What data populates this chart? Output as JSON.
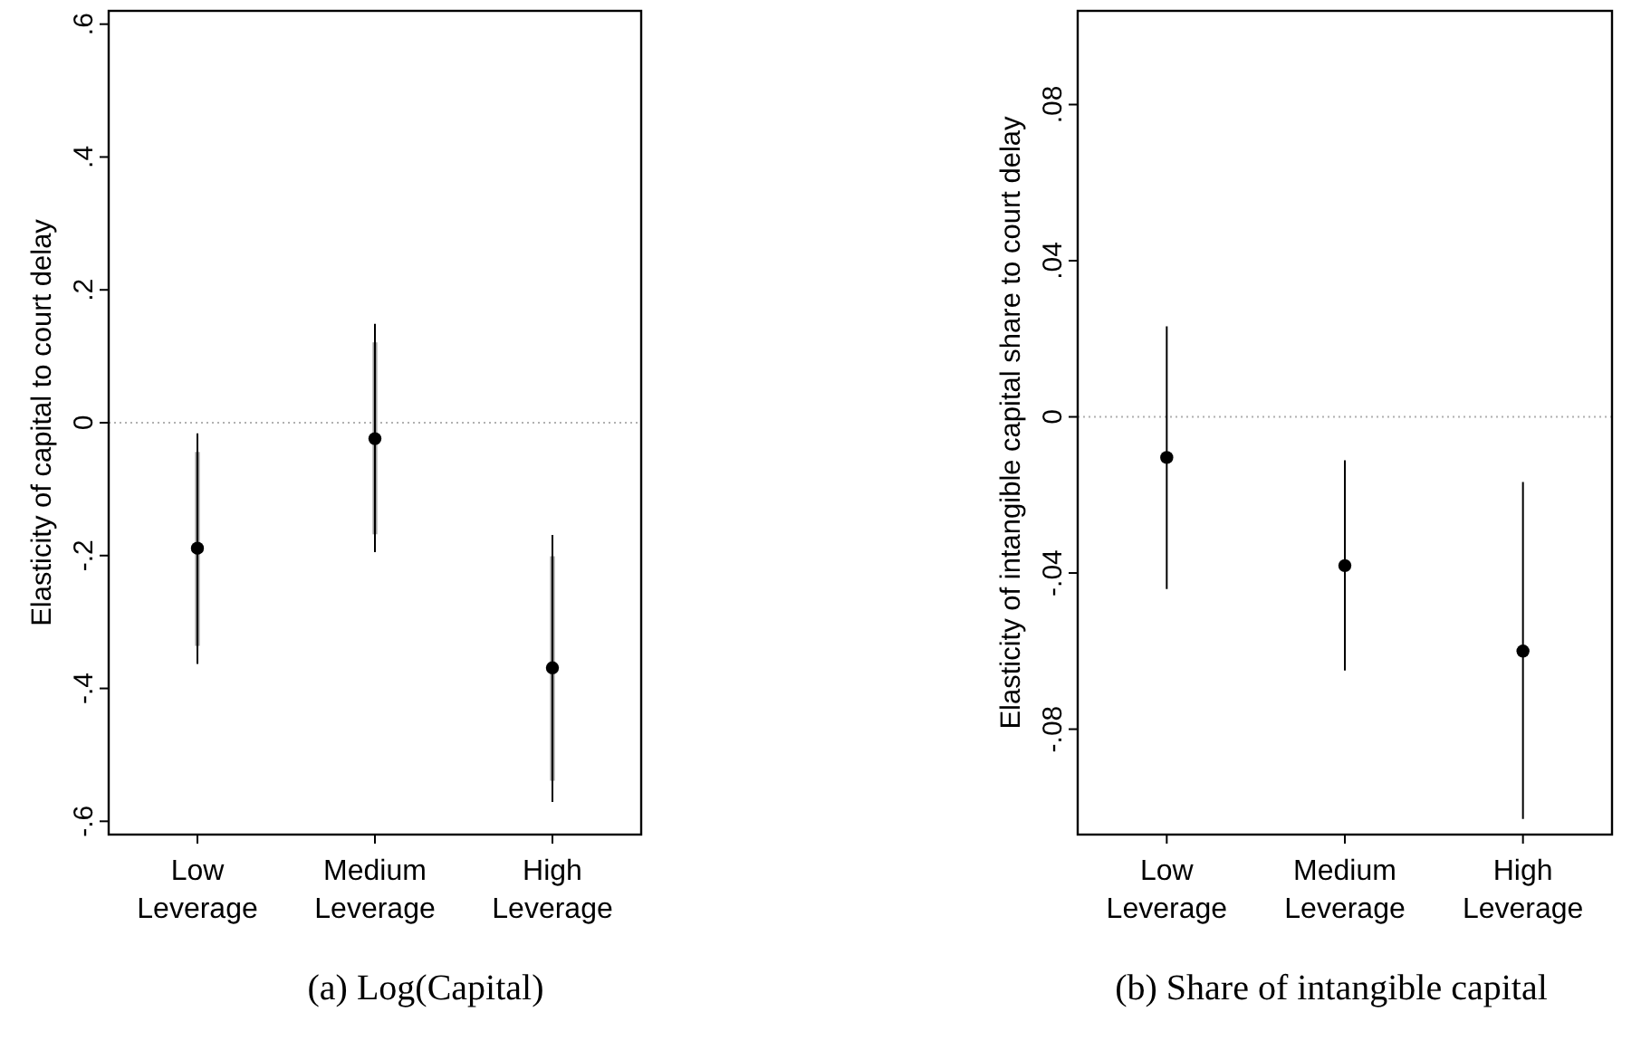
{
  "chart_data": [
    {
      "type": "scatter",
      "title": "(a) Log(Capital)",
      "ylabel": "Elasticity of capital to court delay",
      "categories": [
        "Low Leverage",
        "Medium Leverage",
        "High Leverage"
      ],
      "series": [
        {
          "color": "#000000",
          "values": [
            -0.189,
            -0.024,
            -0.369
          ],
          "errors": [
            [
              -0.363,
              -0.016
            ],
            [
              -0.195,
              0.149
            ],
            [
              -0.571,
              -0.169
            ]
          ],
          "marker": "circle"
        },
        {
          "type": "bar",
          "color": "#a0a0a0",
          "base": [
            -0.336,
            -0.168,
            -0.539
          ],
          "values": [
            0.292,
            0.289,
            0.338
          ]
        }
      ],
      "ylim": [
        -0.62,
        0.62
      ],
      "yticks": [
        {
          "value": -0.6,
          "label": "-.6"
        },
        {
          "value": -0.4,
          "label": "-.4"
        },
        {
          "value": -0.2,
          "label": "-.2"
        },
        0,
        {
          "value": 0.2,
          "label": ".2"
        },
        {
          "value": 0.4,
          "label": ".4"
        },
        {
          "value": 0.6,
          "label": ".6"
        }
      ],
      "ref_lines": [
        {
          "axis": "y",
          "value": 0,
          "color": "#b0b0b0",
          "line_style": "dotted"
        }
      ],
      "grid": false
    },
    {
      "type": "scatter",
      "title": "(b) Share of intangible capital",
      "ylabel": "Elasticity of intangible capital share to court delay",
      "categories": [
        "Low Leverage",
        "Medium Leverage",
        "High Leverage"
      ],
      "series": [
        {
          "color": "#000000",
          "values": [
            -0.0104,
            -0.0381,
            -0.06
          ],
          "errors": [
            [
              -0.0441,
              0.0232
            ],
            [
              -0.065,
              -0.0111
            ],
            [
              -0.103,
              -0.0167
            ]
          ],
          "marker": "circle"
        }
      ],
      "ylim": [
        -0.107,
        0.104
      ],
      "yticks": [
        {
          "value": -0.08,
          "label": "-.08"
        },
        {
          "value": -0.04,
          "label": "-.04"
        },
        0,
        {
          "value": 0.04,
          "label": ".04"
        },
        {
          "value": 0.08,
          "label": ".08"
        }
      ],
      "ref_lines": [
        {
          "axis": "y",
          "value": 0,
          "color": "#b0b0b0",
          "line_style": "dotted"
        }
      ],
      "grid": false
    }
  ]
}
